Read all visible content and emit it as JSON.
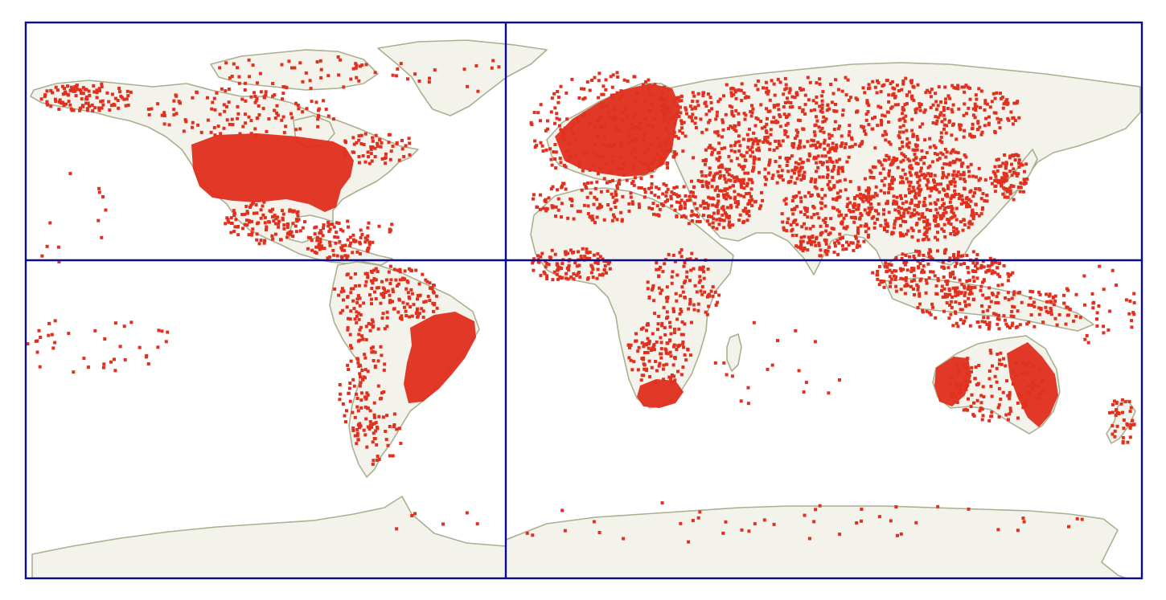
{
  "map": {
    "projection": "equirectangular",
    "layers": [
      "land",
      "point-features",
      "quadrant-grid"
    ],
    "grid": {
      "rows": 2,
      "columns": 2,
      "lines": [
        "equator",
        "prime-meridian"
      ]
    }
  },
  "colors": {
    "background": "#ffffff",
    "land_fill": "#f3f3ec",
    "coastline": "#a9b08e",
    "points": "#e0301e",
    "grid": "#0a0a8c"
  },
  "legend": null
}
